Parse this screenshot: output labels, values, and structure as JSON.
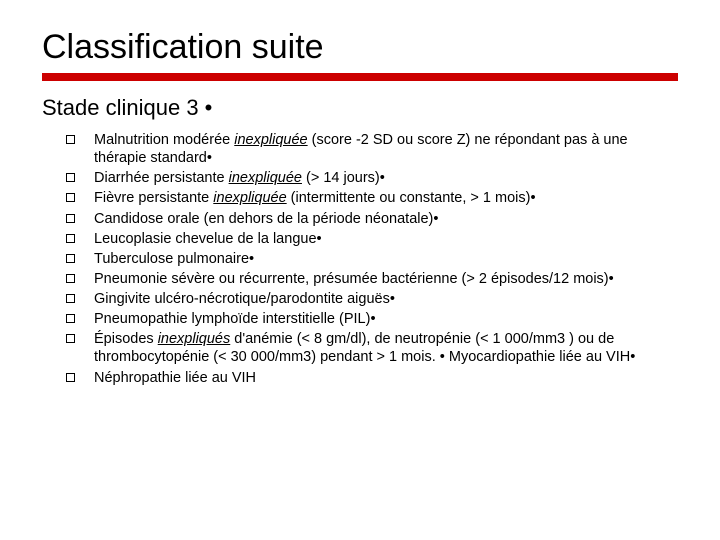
{
  "title": "Classification suite",
  "subtitle": "Stade clinique 3 •",
  "accent_color": "#cc0000",
  "background_color": "#ffffff",
  "text_color": "#000000",
  "title_fontsize": 34,
  "subtitle_fontsize": 22,
  "body_fontsize": 14.5,
  "font_family": "Verdana",
  "items": [
    {
      "pre": "Malnutrition modérée ",
      "em": "inexpliquée",
      "post": " (score -2 SD ou score Z) ne répondant pas à une thérapie standard•"
    },
    {
      "pre": "Diarrhée persistante ",
      "em": "inexpliquée",
      "post": " (> 14 jours)•"
    },
    {
      "pre": "Fièvre persistante ",
      "em": "inexpliquée",
      "post": " (intermittente ou constante, > 1 mois)•"
    },
    {
      "pre": "Candidose orale (en dehors de la période néonatale)•",
      "em": "",
      "post": ""
    },
    {
      "pre": "Leucoplasie chevelue de la langue•",
      "em": "",
      "post": ""
    },
    {
      "pre": "Tuberculose pulmonaire•",
      "em": "",
      "post": ""
    },
    {
      "pre": "Pneumonie sévère ou récurrente, présumée bactérienne (> 2 épisodes/12 mois)•",
      "em": "",
      "post": ""
    },
    {
      "pre": "Gingivite ulcéro-nécrotique/parodontite aiguës•",
      "em": "",
      "post": ""
    },
    {
      "pre": "Pneumopathie lymphoïde interstitielle (PIL)•",
      "em": "",
      "post": ""
    },
    {
      "pre": "Épisodes ",
      "em": "inexpliqués",
      "post": " d'anémie (< 8 gm/dl), de neutropénie (< 1 000/mm3 ) ou de thrombocytopénie (< 30 000/mm3) pendant > 1 mois. •      Myocardiopathie liée au VIH•"
    },
    {
      "pre": "Néphropathie liée au VIH",
      "em": "",
      "post": ""
    }
  ]
}
